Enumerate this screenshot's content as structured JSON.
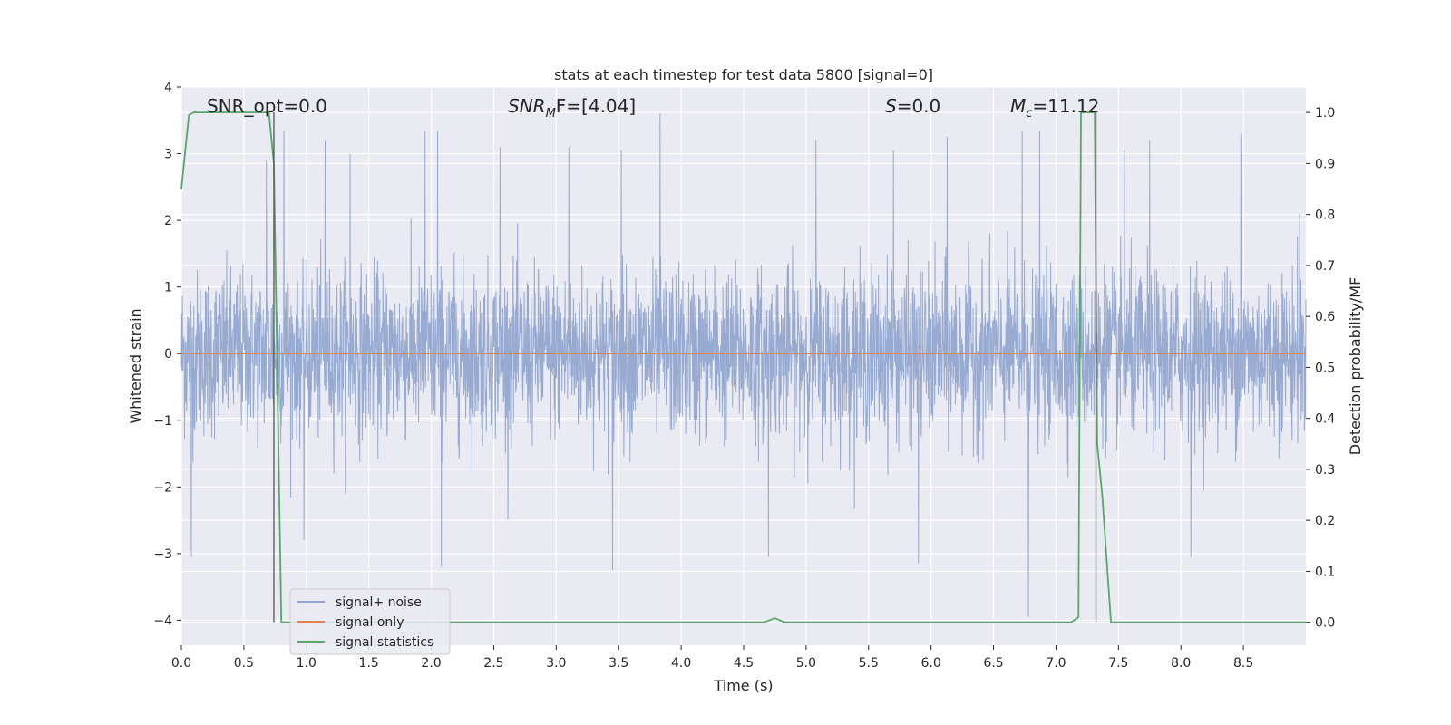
{
  "chart_data": {
    "type": "line",
    "title": "stats at each timestep for test data 5800 [signal=0]",
    "xlabel": "Time (s)",
    "ylabel": "Whitened strain",
    "ylabel_right": "Detection probability/MF",
    "xlim": [
      0,
      9
    ],
    "ylim": [
      -4.375,
      4
    ],
    "ylim_right": [
      -0.045,
      1.05
    ],
    "grid": true,
    "x_ticks": [
      0.0,
      0.5,
      1.0,
      1.5,
      2.0,
      2.5,
      3.0,
      3.5,
      4.0,
      4.5,
      5.0,
      5.5,
      6.0,
      6.5,
      7.0,
      7.5,
      8.0,
      8.5
    ],
    "x_tick_labels": [
      "0.0",
      "0.5",
      "1.0",
      "1.5",
      "2.0",
      "2.5",
      "3.0",
      "3.5",
      "4.0",
      "4.5",
      "5.0",
      "5.5",
      "6.0",
      "6.5",
      "7.0",
      "7.5",
      "8.0",
      "8.5"
    ],
    "y_ticks": [
      4,
      3,
      2,
      1,
      0,
      -1,
      -2,
      -3,
      -4
    ],
    "y_tick_labels": [
      "4",
      "3",
      "2",
      "1",
      "0",
      "−1",
      "−2",
      "−3",
      "−4"
    ],
    "y2_ticks": [
      1.0,
      0.9,
      0.8,
      0.7,
      0.6,
      0.5,
      0.4,
      0.3,
      0.2,
      0.1,
      0.0
    ],
    "y2_tick_labels": [
      "1.0",
      "0.9",
      "0.8",
      "0.7",
      "0.6",
      "0.5",
      "0.4",
      "0.3",
      "0.2",
      "0.1",
      "0.0"
    ],
    "annotations": [
      {
        "text": "SNR_opt=0.0"
      },
      {
        "text": "SNRₘF=[4.04]",
        "base": "SNR",
        "sub": "M",
        "rest": "F=[4.04]"
      },
      {
        "text": "S=0.0",
        "base": "S",
        "rest": "=0.0"
      },
      {
        "text": "M_c=11.12",
        "base": "M",
        "sub": "c",
        "rest": "=11.12"
      }
    ],
    "vlines": [
      0.74,
      7.32
    ],
    "series": [
      {
        "name": "signal+ noise",
        "color": "#92a7cf",
        "axis": "left",
        "noise_sigma": 0.62,
        "noise_samples": 3600,
        "peaks": [
          {
            "x": 0.08,
            "y": -3.05
          },
          {
            "x": 0.68,
            "y": 2.9
          },
          {
            "x": 0.82,
            "y": 3.35
          },
          {
            "x": 0.98,
            "y": -2.8
          },
          {
            "x": 1.15,
            "y": 3.2
          },
          {
            "x": 1.35,
            "y": 3.0
          },
          {
            "x": 1.95,
            "y": 3.35
          },
          {
            "x": 2.05,
            "y": 3.35
          },
          {
            "x": 2.08,
            "y": -3.2
          },
          {
            "x": 2.55,
            "y": 3.1
          },
          {
            "x": 3.1,
            "y": 3.1
          },
          {
            "x": 3.45,
            "y": -3.25
          },
          {
            "x": 3.52,
            "y": 3.05
          },
          {
            "x": 3.83,
            "y": 3.6
          },
          {
            "x": 4.7,
            "y": -3.05
          },
          {
            "x": 5.08,
            "y": 3.2
          },
          {
            "x": 5.7,
            "y": 3.05
          },
          {
            "x": 5.9,
            "y": -3.15
          },
          {
            "x": 6.13,
            "y": 3.25
          },
          {
            "x": 6.73,
            "y": 3.35
          },
          {
            "x": 6.78,
            "y": -3.95
          },
          {
            "x": 6.87,
            "y": 3.35
          },
          {
            "x": 7.55,
            "y": 3.05
          },
          {
            "x": 7.75,
            "y": 3.2
          },
          {
            "x": 8.08,
            "y": -3.05
          },
          {
            "x": 8.48,
            "y": 3.3
          },
          {
            "x": 8.95,
            "y": 2.1
          }
        ]
      },
      {
        "name": "signal only",
        "color": "#dd8452",
        "axis": "left",
        "x": [
          0,
          9
        ],
        "y": [
          0,
          0
        ]
      },
      {
        "name": "signal statistics",
        "color": "#55a868",
        "axis": "right",
        "x": [
          0.0,
          0.06,
          0.1,
          0.7,
          0.74,
          0.8,
          0.86,
          4.66,
          4.75,
          4.83,
          7.12,
          7.18,
          7.2,
          7.24,
          7.31,
          7.33,
          7.37,
          7.44,
          9.0
        ],
        "y": [
          0.85,
          0.995,
          1.0,
          1.0,
          0.9,
          0.0,
          0.0,
          0.0,
          0.008,
          0.0,
          0.0,
          0.01,
          1.0,
          1.0,
          1.0,
          0.35,
          0.25,
          0.0,
          0.0
        ]
      }
    ],
    "legend": {
      "placement": "lower-left",
      "entries": [
        "signal+ noise",
        "signal only",
        "signal statistics"
      ]
    }
  }
}
